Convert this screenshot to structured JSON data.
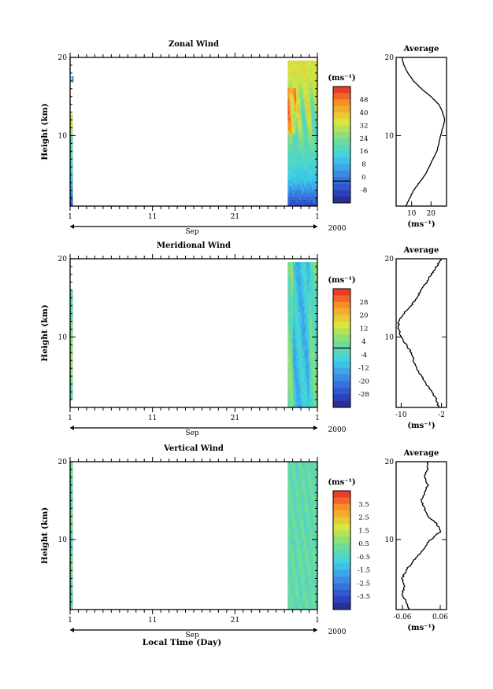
{
  "chart_data": [
    {
      "type": "heatmap",
      "title": "Zonal Wind",
      "ylabel": "Height (km)",
      "ylim": [
        1,
        20
      ],
      "y_ticks": [
        10,
        20
      ],
      "x_ticks": [
        "1",
        "11",
        "21",
        "1"
      ],
      "month_label": "Sep",
      "year_label": "2000",
      "colorbar_unit": "(ms⁻¹)",
      "colorbar_ticks": [
        "48",
        "40",
        "32",
        "24",
        "16",
        "8",
        "0",
        "-8"
      ],
      "colorbar_range": [
        -12,
        52
      ],
      "zero_line_value": 0,
      "data_segments_day": [
        [
          1.0,
          1.3
        ],
        [
          27.4,
          31.0
        ]
      ],
      "profile": {
        "title": "Average",
        "xlabel": "(ms⁻¹)",
        "xlim": [
          2,
          28
        ],
        "x_ticks": [
          "10",
          "20"
        ],
        "x_tick_values": [
          10,
          20
        ],
        "height": [
          1,
          2,
          3,
          4,
          5,
          6,
          7,
          8,
          9,
          10,
          11,
          12,
          13,
          14,
          15,
          16,
          17,
          18,
          19,
          20
        ],
        "value": [
          7,
          9,
          11,
          14,
          17,
          19,
          21,
          23,
          24,
          25,
          26,
          27,
          26,
          24,
          20,
          15,
          11,
          8,
          6,
          5
        ]
      }
    },
    {
      "type": "heatmap",
      "title": "Meridional Wind",
      "ylabel": "Height (km)",
      "ylim": [
        1,
        20
      ],
      "y_ticks": [
        10,
        20
      ],
      "x_ticks": [
        "1",
        "11",
        "21",
        "1"
      ],
      "month_label": "Sep",
      "year_label": "2000",
      "colorbar_unit": "(ms⁻¹)",
      "colorbar_ticks": [
        "28",
        "20",
        "12",
        "4",
        "-4",
        "-12",
        "-20",
        "-28"
      ],
      "colorbar_range": [
        -32,
        32
      ],
      "zero_line_value": 0,
      "data_segments_day": [
        [
          1.0,
          1.3
        ],
        [
          27.4,
          31.0
        ]
      ],
      "profile": {
        "title": "Average",
        "xlabel": "(ms⁻¹)",
        "xlim": [
          -11,
          -1
        ],
        "x_ticks": [
          "-10",
          "-2"
        ],
        "x_tick_values": [
          -10,
          -2
        ],
        "height": [
          1,
          2,
          3,
          4,
          5,
          6,
          7,
          8,
          9,
          10,
          11,
          12,
          13,
          14,
          15,
          16,
          17,
          18,
          19,
          20
        ],
        "value": [
          -2.5,
          -3,
          -4,
          -5,
          -6,
          -7,
          -7.5,
          -8,
          -9,
          -10,
          -10.5,
          -10.5,
          -9.5,
          -8,
          -7,
          -6,
          -5,
          -4,
          -3,
          -2
        ]
      }
    },
    {
      "type": "heatmap",
      "title": "Vertical Wind",
      "xlabel": "Local Time (Day)",
      "ylabel": "Height (km)",
      "ylim": [
        1,
        20
      ],
      "y_ticks": [
        10,
        20
      ],
      "x_ticks": [
        "1",
        "11",
        "21",
        "1"
      ],
      "month_label": "Sep",
      "year_label": "2000",
      "colorbar_unit": "(ms⁻¹)",
      "colorbar_ticks": [
        "3.5",
        "2.5",
        "1.5",
        "0.5",
        "-0.5",
        "-1.5",
        "-2.5",
        "-3.5"
      ],
      "colorbar_range": [
        -4,
        4
      ],
      "data_segments_day": [
        [
          1.0,
          1.3
        ],
        [
          27.4,
          31.0
        ]
      ],
      "profile": {
        "title": "Average",
        "xlabel": "(ms⁻¹)",
        "xlim": [
          -0.08,
          0.08
        ],
        "x_ticks": [
          "-0.06",
          "0.06"
        ],
        "x_tick_values": [
          -0.06,
          0.06
        ],
        "height": [
          1,
          2,
          3,
          4,
          5,
          6,
          7,
          8,
          9,
          10,
          11,
          12,
          13,
          14,
          15,
          16,
          17,
          18,
          19,
          20
        ],
        "value": [
          -0.04,
          -0.05,
          -0.06,
          -0.055,
          -0.06,
          -0.05,
          -0.03,
          -0.01,
          0.01,
          0.03,
          0.06,
          0.05,
          0.02,
          0.01,
          0.0,
          0.01,
          0.02,
          0.01,
          0.02,
          0.02
        ]
      }
    }
  ]
}
